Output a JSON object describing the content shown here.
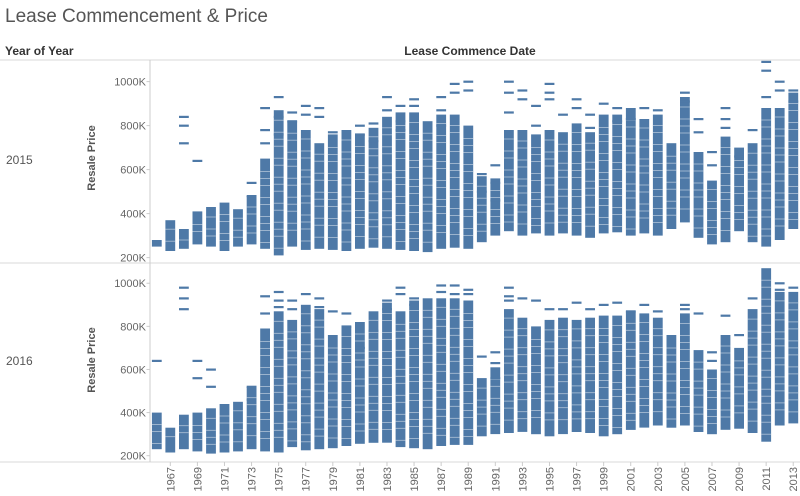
{
  "title": "Lease Commencement & Price",
  "row_header": "Year of Year",
  "column_header": "Lease Commence Date",
  "panels": [
    {
      "year_label": "2015",
      "y_axis_label": "Resale Price"
    },
    {
      "year_label": "2016",
      "y_axis_label": "Resale Price"
    }
  ],
  "colors": {
    "mark": "#4e79a7",
    "divider": "#d9d9d9",
    "axis": "#cccccc"
  },
  "chart_data": {
    "type": "bar",
    "subtype": "gantt-range-by-lease-commence-year",
    "title": "Lease Commencement & Price",
    "xlabel": "Lease Commence Date",
    "ylabel": "Resale Price",
    "ylim": [
      180000,
      1080000
    ],
    "y_ticks": [
      200000,
      400000,
      600000,
      800000,
      1000000
    ],
    "y_tick_labels": [
      "200K",
      "400K",
      "600K",
      "800K",
      "1000K"
    ],
    "x_tick_labels": [
      "1967",
      "1969",
      "1971",
      "1973",
      "1975",
      "1977",
      "1979",
      "1981",
      "1983",
      "1985",
      "1987",
      "1989",
      "1991",
      "1993",
      "1995",
      "1997",
      "1999",
      "2001",
      "2003",
      "2005",
      "2007",
      "2009",
      "2011",
      "2013"
    ],
    "categories": [
      1966,
      1967,
      1968,
      1969,
      1970,
      1971,
      1972,
      1973,
      1974,
      1975,
      1976,
      1977,
      1978,
      1979,
      1980,
      1981,
      1982,
      1983,
      1984,
      1985,
      1986,
      1987,
      1988,
      1989,
      1990,
      1991,
      1992,
      1993,
      1994,
      1995,
      1996,
      1997,
      1998,
      1999,
      2000,
      2001,
      2002,
      2003,
      2004,
      2005,
      2006,
      2007,
      2008,
      2009,
      2010,
      2011,
      2012,
      2013
    ],
    "series": [
      {
        "name": "2015",
        "low": [
          250,
          230,
          240,
          260,
          250,
          230,
          250,
          260,
          240,
          210,
          250,
          235,
          240,
          235,
          230,
          240,
          245,
          240,
          235,
          230,
          225,
          240,
          245,
          240,
          270,
          300,
          320,
          300,
          310,
          300,
          310,
          300,
          290,
          310,
          315,
          300,
          310,
          300,
          330,
          360,
          290,
          260,
          270,
          320,
          270,
          250,
          280,
          330
        ],
        "high": [
          280,
          370,
          330,
          410,
          430,
          450,
          420,
          480,
          650,
          870,
          820,
          780,
          720,
          760,
          780,
          760,
          790,
          840,
          860,
          860,
          820,
          850,
          850,
          800,
          570,
          560,
          780,
          780,
          760,
          780,
          770,
          810,
          770,
          850,
          850,
          880,
          830,
          850,
          720,
          930,
          680,
          550,
          750,
          700,
          720,
          880,
          880,
          950
        ],
        "outliers": [
          [],
          [],
          [
            840,
            800,
            720
          ],
          [
            640
          ],
          [],
          [],
          [],
          [
            540,
            480
          ],
          [
            880,
            780,
            720
          ],
          [
            930,
            840,
            760
          ],
          [
            860,
            820
          ],
          [
            890,
            850
          ],
          [
            880,
            840
          ],
          [
            770
          ],
          [],
          [
            800,
            760
          ],
          [
            810,
            730
          ],
          [
            930,
            870
          ],
          [
            890,
            820,
            780
          ],
          [
            920,
            890
          ],
          [],
          [
            930,
            870,
            800
          ],
          [
            990,
            950
          ],
          [
            1000,
            960
          ],
          [
            580,
            500
          ],
          [
            620,
            540,
            460
          ],
          [
            1000,
            950,
            860
          ],
          [
            960,
            920
          ],
          [
            890,
            800
          ],
          [
            990,
            950,
            920
          ],
          [
            850
          ],
          [
            920,
            880
          ],
          [
            850,
            790
          ],
          [
            900
          ],
          [
            880,
            820
          ],
          [
            830
          ],
          [
            880
          ],
          [
            870
          ],
          [],
          [
            950,
            910
          ],
          [
            830,
            770
          ],
          [
            680,
            620
          ],
          [
            880,
            830,
            790
          ],
          [
            660
          ],
          [
            780
          ],
          [
            1090,
            1050,
            930
          ],
          [
            1000,
            960
          ],
          [
            960,
            910
          ]
        ]
      },
      {
        "name": "2016",
        "low": [
          230,
          215,
          230,
          220,
          210,
          215,
          220,
          230,
          220,
          215,
          240,
          225,
          230,
          235,
          245,
          255,
          260,
          260,
          240,
          235,
          230,
          245,
          250,
          250,
          290,
          300,
          305,
          310,
          300,
          290,
          300,
          310,
          305,
          290,
          300,
          320,
          330,
          340,
          330,
          340,
          310,
          300,
          320,
          325,
          305,
          265,
          340,
          350
        ],
        "high": [
          400,
          330,
          390,
          400,
          420,
          440,
          450,
          520,
          790,
          870,
          830,
          900,
          880,
          760,
          800,
          820,
          870,
          910,
          870,
          920,
          930,
          930,
          930,
          920,
          560,
          610,
          880,
          840,
          800,
          830,
          840,
          830,
          840,
          850,
          850,
          870,
          860,
          840,
          760,
          860,
          690,
          600,
          760,
          700,
          880,
          1070,
          960,
          960
        ],
        "outliers": [
          [
            640
          ],
          [],
          [
            980,
            930,
            880
          ],
          [
            640,
            560
          ],
          [
            600,
            520
          ],
          [],
          [],
          [
            520,
            460
          ],
          [
            940,
            860
          ],
          [
            960,
            920,
            890
          ],
          [
            920,
            880
          ],
          [
            950
          ],
          [
            930,
            890
          ],
          [
            870
          ],
          [
            860,
            800
          ],
          [
            700
          ],
          [
            780
          ],
          [
            920,
            880
          ],
          [
            980,
            950
          ],
          [
            930,
            900
          ],
          [],
          [
            990,
            960
          ],
          [
            990,
            950
          ],
          [
            970,
            950
          ],
          [
            660
          ],
          [
            680,
            630,
            560
          ],
          [
            980,
            940,
            920
          ],
          [
            930
          ],
          [
            920
          ],
          [
            880
          ],
          [
            880
          ],
          [
            910
          ],
          [
            880
          ],
          [
            900
          ],
          [
            910
          ],
          [
            870
          ],
          [
            900
          ],
          [
            870
          ],
          [],
          [
            900,
            880
          ],
          [
            860
          ],
          [
            680,
            640
          ],
          [
            850
          ],
          [
            760
          ],
          [
            930
          ],
          [],
          [
            1000,
            970
          ],
          [
            980
          ]
        ]
      }
    ]
  }
}
